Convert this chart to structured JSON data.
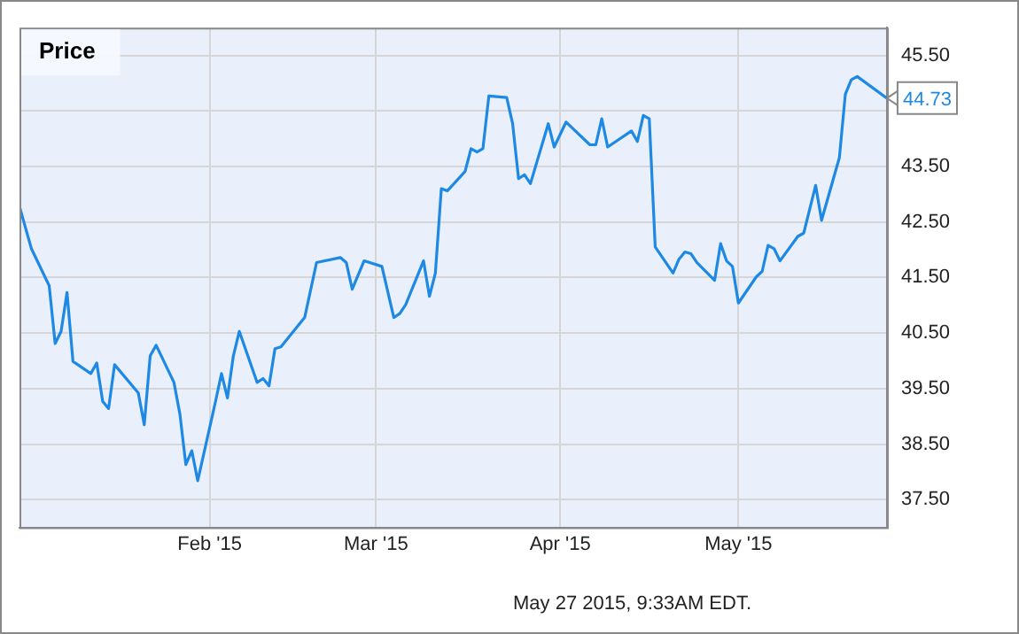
{
  "chart_data": {
    "type": "line",
    "title": "Price",
    "annotations": [
      "May 27 2015, 9:33AM EDT."
    ],
    "x": [
      "2014-12-31",
      "2015-01-02",
      "2015-01-05",
      "2015-01-06",
      "2015-01-07",
      "2015-01-08",
      "2015-01-09",
      "2015-01-12",
      "2015-01-13",
      "2015-01-14",
      "2015-01-15",
      "2015-01-16",
      "2015-01-20",
      "2015-01-21",
      "2015-01-22",
      "2015-01-23",
      "2015-01-26",
      "2015-01-27",
      "2015-01-28",
      "2015-01-29",
      "2015-01-30",
      "2015-02-02",
      "2015-02-03",
      "2015-02-04",
      "2015-02-05",
      "2015-02-06",
      "2015-02-09",
      "2015-02-10",
      "2015-02-11",
      "2015-02-12",
      "2015-02-13",
      "2015-02-17",
      "2015-02-19",
      "2015-02-23",
      "2015-02-24",
      "2015-02-25",
      "2015-02-27",
      "2015-03-02",
      "2015-03-04",
      "2015-03-05",
      "2015-03-06",
      "2015-03-09",
      "2015-03-10",
      "2015-03-11",
      "2015-03-12",
      "2015-03-13",
      "2015-03-16",
      "2015-03-17",
      "2015-03-18",
      "2015-03-19",
      "2015-03-20",
      "2015-03-23",
      "2015-03-24",
      "2015-03-25",
      "2015-03-26",
      "2015-03-27",
      "2015-03-30",
      "2015-03-31",
      "2015-04-02",
      "2015-04-06",
      "2015-04-07",
      "2015-04-08",
      "2015-04-09",
      "2015-04-13",
      "2015-04-14",
      "2015-04-15",
      "2015-04-16",
      "2015-04-17",
      "2015-04-20",
      "2015-04-21",
      "2015-04-22",
      "2015-04-23",
      "2015-04-24",
      "2015-04-27",
      "2015-04-28",
      "2015-04-29",
      "2015-04-30",
      "2015-05-01",
      "2015-05-04",
      "2015-05-05",
      "2015-05-06",
      "2015-05-07",
      "2015-05-08",
      "2015-05-11",
      "2015-05-12",
      "2015-05-14",
      "2015-05-15",
      "2015-05-18",
      "2015-05-19",
      "2015-05-20",
      "2015-05-21",
      "2015-05-26"
    ],
    "series": [
      {
        "color": "#1e88e5",
        "values": [
          42.78,
          42.02,
          41.35,
          40.31,
          40.53,
          41.23,
          39.99,
          39.77,
          39.96,
          39.27,
          39.14,
          39.93,
          39.42,
          38.85,
          40.09,
          40.28,
          39.61,
          39.04,
          38.13,
          38.38,
          37.84,
          39.27,
          39.77,
          39.33,
          40.09,
          40.53,
          39.61,
          39.68,
          39.55,
          40.22,
          40.25,
          40.78,
          41.77,
          41.86,
          41.77,
          41.29,
          41.8,
          41.7,
          40.78,
          40.85,
          41.01,
          41.8,
          41.16,
          41.58,
          43.1,
          43.06,
          43.41,
          43.82,
          43.76,
          43.82,
          44.77,
          44.74,
          44.27,
          43.28,
          43.35,
          43.19,
          44.27,
          43.85,
          44.3,
          43.89,
          43.89,
          44.36,
          43.85,
          44.14,
          43.95,
          44.42,
          44.36,
          42.05,
          41.58,
          41.83,
          41.96,
          41.93,
          41.77,
          41.45,
          42.11,
          41.8,
          41.7,
          41.04,
          41.51,
          41.61,
          42.08,
          42.02,
          41.8,
          42.24,
          42.3,
          43.16,
          42.53,
          43.66,
          44.8,
          45.06,
          45.12,
          44.73
        ],
        "value_labels": [
          null,
          null,
          null,
          null,
          null,
          null,
          null,
          null,
          null,
          null,
          null,
          null,
          null,
          null,
          null,
          null,
          null,
          null,
          null,
          null,
          null,
          null,
          null,
          null,
          null,
          null,
          null,
          null,
          null,
          null,
          null,
          null,
          null,
          null,
          null,
          null,
          null,
          null,
          null,
          null,
          null,
          null,
          null,
          null,
          null,
          null,
          null,
          null,
          null,
          null,
          null,
          null,
          null,
          null,
          null,
          null,
          null,
          null,
          null,
          null,
          null,
          null,
          null,
          null,
          null,
          null,
          null,
          null,
          null,
          null,
          null,
          null,
          null,
          null,
          null,
          null,
          null,
          null,
          null,
          null,
          null,
          null,
          null,
          null,
          null,
          null,
          null,
          null,
          null,
          null,
          null,
          "44.73"
        ]
      }
    ],
    "xlim": [
      "2014-12-31",
      "2015-05-26"
    ],
    "xticks": [
      {
        "value": "2015-02-01",
        "label": "Feb '15"
      },
      {
        "value": "2015-03-01",
        "label": "Mar '15"
      },
      {
        "value": "2015-04-01",
        "label": "Apr '15"
      },
      {
        "value": "2015-05-01",
        "label": "May '15"
      }
    ],
    "ylim": [
      37,
      46
    ],
    "yticks": [
      {
        "value": 37.5,
        "label": "37.50"
      },
      {
        "value": 38.5,
        "label": "38.50"
      },
      {
        "value": 39.5,
        "label": "39.50"
      },
      {
        "value": 40.5,
        "label": "40.50"
      },
      {
        "value": 41.5,
        "label": "41.50"
      },
      {
        "value": 42.5,
        "label": "42.50"
      },
      {
        "value": 43.5,
        "label": "43.50"
      },
      {
        "value": 44.5,
        "label": null
      },
      {
        "value": 45.5,
        "label": "45.50"
      }
    ],
    "grid": true,
    "legend": false,
    "marker": "none",
    "line_style": "solid"
  }
}
